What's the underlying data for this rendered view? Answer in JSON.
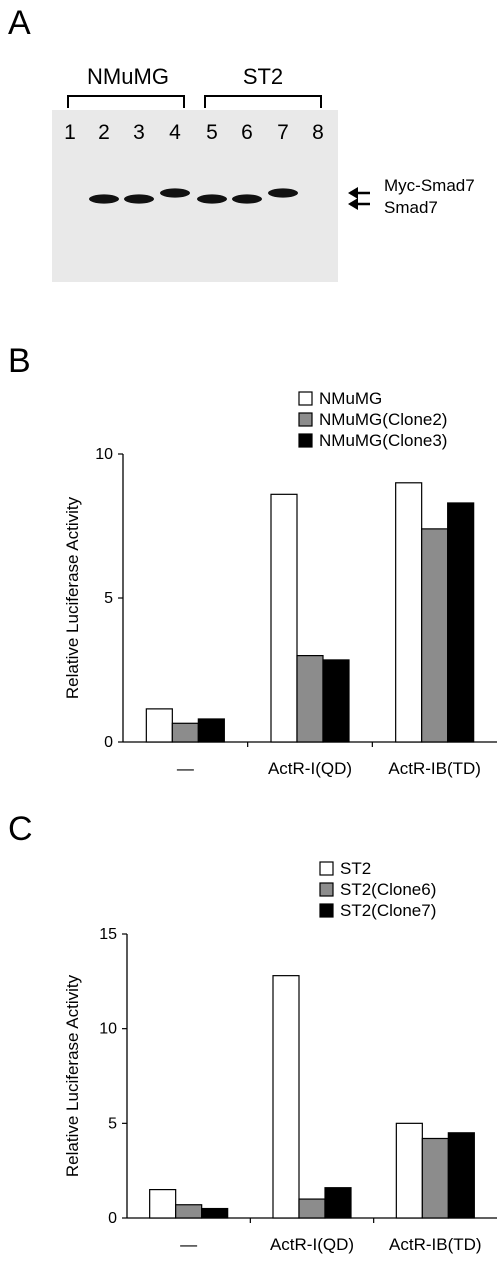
{
  "panel_a": {
    "letter": "A",
    "groups": [
      {
        "label": "NMuMG",
        "lanes": [
          "1",
          "2",
          "3",
          "4"
        ]
      },
      {
        "label": "ST2",
        "lanes": [
          "5",
          "6",
          "7",
          "8"
        ]
      }
    ],
    "band_labels": [
      "Myc-Smad7",
      "Smad7"
    ],
    "bands": [
      {
        "lane": "1",
        "present": false
      },
      {
        "lane": "2",
        "present": true,
        "band": "Smad7"
      },
      {
        "lane": "3",
        "present": true,
        "band": "Smad7"
      },
      {
        "lane": "4",
        "present": true,
        "band": "Myc-Smad7"
      },
      {
        "lane": "5",
        "present": true,
        "band": "Smad7"
      },
      {
        "lane": "6",
        "present": true,
        "band": "Smad7"
      },
      {
        "lane": "7",
        "present": true,
        "band": "Myc-Smad7"
      },
      {
        "lane": "8",
        "present": false
      }
    ],
    "gel_color": "#e9e9e9"
  },
  "panel_b": {
    "letter": "B",
    "chart_data": {
      "type": "bar",
      "categories": [
        "—",
        "ActR-I(QD)",
        "ActR-IB(TD)"
      ],
      "series": [
        {
          "name": "NMuMG",
          "values": [
            1.15,
            8.6,
            9.0
          ],
          "color": "#ffffff"
        },
        {
          "name": "NMuMG(Clone2)",
          "values": [
            0.65,
            3.0,
            7.4
          ],
          "color": "#8c8c8c"
        },
        {
          "name": "NMuMG(Clone3)",
          "values": [
            0.8,
            2.85,
            8.3
          ],
          "color": "#000000"
        }
      ],
      "ylabel": "Relative Luciferase Activity",
      "ylim": [
        0,
        10
      ],
      "yticks": [
        "0",
        "5",
        "10"
      ],
      "legend": "top-right",
      "grid": false
    }
  },
  "panel_c": {
    "letter": "C",
    "chart_data": {
      "type": "bar",
      "categories": [
        "—",
        "ActR-I(QD)",
        "ActR-IB(TD)"
      ],
      "series": [
        {
          "name": "ST2",
          "values": [
            1.5,
            12.8,
            5.0
          ],
          "color": "#ffffff"
        },
        {
          "name": "ST2(Clone6)",
          "values": [
            0.7,
            1.0,
            4.2
          ],
          "color": "#8c8c8c"
        },
        {
          "name": "ST2(Clone7)",
          "values": [
            0.5,
            1.6,
            4.5
          ],
          "color": "#000000"
        }
      ],
      "ylabel": "Relative Luciferase Activity",
      "ylim": [
        0,
        15
      ],
      "yticks": [
        "0",
        "5",
        "10",
        "15"
      ],
      "legend": "top-right",
      "grid": false
    }
  }
}
